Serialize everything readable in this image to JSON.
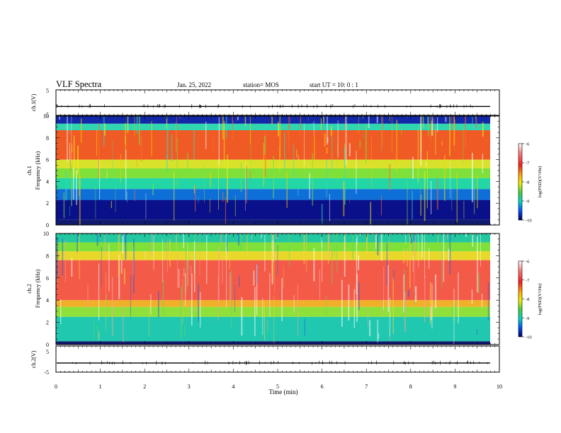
{
  "header": {
    "title": "VLF Spectra",
    "date": "Jan. 25, 2022",
    "station": "station= MOS",
    "start": "start  UT =   10: 0  : 1"
  },
  "chart_data": [
    {
      "type": "line",
      "ylabel": "ch.1(V)",
      "ylim": [
        -5,
        5
      ],
      "yticks": [
        "5",
        "-5"
      ],
      "series": [
        {
          "level": -1.5
        }
      ]
    },
    {
      "type": "heatmap",
      "ylabel": "ch.1",
      "ylabel2": "Frequency (kHz)",
      "ylim": [
        0,
        10
      ],
      "yticks": [
        "0",
        "2",
        "4",
        "6",
        "8",
        "10"
      ],
      "xlim": [
        0,
        10
      ],
      "colorbar": {
        "label": "log(PSD)(V²/Hz)",
        "range": [
          -10,
          -6
        ],
        "ticks": [
          "-6",
          "-7",
          "-8",
          "-9",
          "-10"
        ]
      },
      "bands": [
        {
          "from": 0,
          "to": 0.5,
          "color": "#101a6e"
        },
        {
          "from": 0.5,
          "to": 2.3,
          "color": "#0a0f8a"
        },
        {
          "from": 2.3,
          "to": 3.3,
          "color": "#0f6fd8"
        },
        {
          "from": 3.3,
          "to": 4.3,
          "color": "#22d6a6"
        },
        {
          "from": 4.3,
          "to": 5.2,
          "color": "#7fe03a"
        },
        {
          "from": 5.2,
          "to": 6.0,
          "color": "#d8e22a"
        },
        {
          "from": 6.0,
          "to": 8.7,
          "color": "#f05a24"
        },
        {
          "from": 8.7,
          "to": 9.3,
          "color": "#2fd6b0"
        },
        {
          "from": 9.3,
          "to": 10.0,
          "color": "#1228a8"
        }
      ]
    },
    {
      "type": "heatmap",
      "ylabel": "ch.2",
      "ylabel2": "Frequency (kHz)",
      "ylim": [
        0,
        10
      ],
      "yticks": [
        "0",
        "2",
        "4",
        "6",
        "8",
        "10"
      ],
      "xlim": [
        0,
        10
      ],
      "colorbar": {
        "label": "log(PSD)(V²/Hz)",
        "range": [
          -10,
          -6
        ],
        "ticks": [
          "-6",
          "-7",
          "-8",
          "-9",
          "-10"
        ]
      },
      "bands": [
        {
          "from": 0,
          "to": 0.3,
          "color": "#101a6e"
        },
        {
          "from": 0.3,
          "to": 2.5,
          "color": "#20c8b0"
        },
        {
          "from": 2.5,
          "to": 3.4,
          "color": "#8fe03a"
        },
        {
          "from": 3.4,
          "to": 4.0,
          "color": "#f0b028"
        },
        {
          "from": 4.0,
          "to": 7.6,
          "color": "#f45a48"
        },
        {
          "from": 7.6,
          "to": 8.4,
          "color": "#e8d82a"
        },
        {
          "from": 8.4,
          "to": 9.2,
          "color": "#7fe03a"
        },
        {
          "from": 9.2,
          "to": 10.0,
          "color": "#24c8a0"
        }
      ]
    },
    {
      "type": "line",
      "ylabel": "ch.2(V)",
      "ylim": [
        -5,
        5
      ],
      "yticks": [
        "5",
        "-5"
      ],
      "series": [
        {
          "level": -1.5
        }
      ]
    }
  ],
  "xaxis": {
    "label": "Time (min)",
    "ticks": [
      "0",
      "1",
      "2",
      "3",
      "4",
      "5",
      "6",
      "7",
      "8",
      "9",
      "10"
    ],
    "range": [
      0,
      10
    ]
  }
}
